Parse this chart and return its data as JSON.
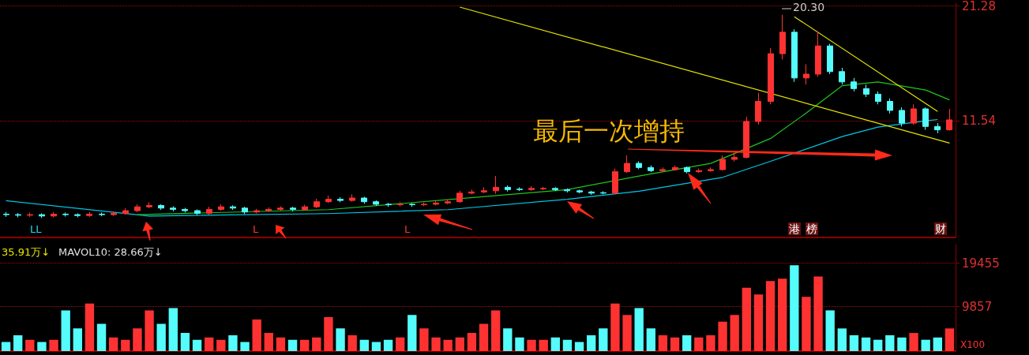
{
  "chart_data": [
    {
      "type": "candlestick",
      "categories": [
        null,
        null,
        null,
        null,
        null,
        null,
        null,
        null,
        null,
        null,
        null,
        null,
        null,
        null,
        null,
        null,
        null,
        null,
        null,
        null,
        null,
        null,
        null,
        null,
        null,
        null,
        null,
        null,
        null,
        null,
        null,
        null,
        null,
        null,
        null,
        null,
        null,
        null,
        null,
        null,
        null,
        null,
        null,
        null,
        null,
        null,
        null,
        null,
        null,
        null,
        null,
        null,
        null,
        null,
        null,
        null,
        null,
        null,
        null,
        null,
        null,
        null,
        null,
        null,
        null,
        null,
        null,
        null,
        null,
        null,
        null,
        null,
        null,
        null,
        null,
        null,
        null,
        null,
        null,
        null
      ],
      "ohlc": [
        [
          7.02,
          7.1,
          6.92,
          7.0
        ],
        [
          7.0,
          7.06,
          6.9,
          6.98
        ],
        [
          6.98,
          7.08,
          6.92,
          7.0
        ],
        [
          7.0,
          7.05,
          6.88,
          6.95
        ],
        [
          6.95,
          7.1,
          6.9,
          7.02
        ],
        [
          7.02,
          7.08,
          6.93,
          7.0
        ],
        [
          7.0,
          7.05,
          6.9,
          6.97
        ],
        [
          6.97,
          7.1,
          6.92,
          7.02
        ],
        [
          7.02,
          7.08,
          6.94,
          7.0
        ],
        [
          7.0,
          7.12,
          6.95,
          7.05
        ],
        [
          7.05,
          7.25,
          7.0,
          7.15
        ],
        [
          7.15,
          7.4,
          7.1,
          7.3
        ],
        [
          7.3,
          7.48,
          7.25,
          7.35
        ],
        [
          7.35,
          7.4,
          7.18,
          7.25
        ],
        [
          7.25,
          7.32,
          7.12,
          7.2
        ],
        [
          7.2,
          7.26,
          7.08,
          7.15
        ],
        [
          7.15,
          7.2,
          6.98,
          7.05
        ],
        [
          7.05,
          7.3,
          7.0,
          7.2
        ],
        [
          7.2,
          7.4,
          7.15,
          7.3
        ],
        [
          7.3,
          7.36,
          7.18,
          7.25
        ],
        [
          7.25,
          7.3,
          7.02,
          7.1
        ],
        [
          7.1,
          7.22,
          7.05,
          7.15
        ],
        [
          7.15,
          7.28,
          7.1,
          7.2
        ],
        [
          7.2,
          7.32,
          7.15,
          7.25
        ],
        [
          7.25,
          7.3,
          7.12,
          7.2
        ],
        [
          7.2,
          7.38,
          7.15,
          7.3
        ],
        [
          7.3,
          7.62,
          7.25,
          7.5
        ],
        [
          7.5,
          7.75,
          7.45,
          7.6
        ],
        [
          7.6,
          7.68,
          7.48,
          7.55
        ],
        [
          7.55,
          7.8,
          7.5,
          7.65
        ],
        [
          7.65,
          7.7,
          7.42,
          7.5
        ],
        [
          7.5,
          7.55,
          7.34,
          7.4
        ],
        [
          7.4,
          7.45,
          7.3,
          7.38
        ],
        [
          7.38,
          7.48,
          7.32,
          7.4
        ],
        [
          7.4,
          7.45,
          7.3,
          7.38
        ],
        [
          7.38,
          7.47,
          7.33,
          7.4
        ],
        [
          7.4,
          7.52,
          7.36,
          7.45
        ],
        [
          7.45,
          7.58,
          7.4,
          7.5
        ],
        [
          7.5,
          7.95,
          7.46,
          7.85
        ],
        [
          7.85,
          8.0,
          7.8,
          7.9
        ],
        [
          7.9,
          8.1,
          7.85,
          7.95
        ],
        [
          7.95,
          8.6,
          7.82,
          8.1
        ],
        [
          8.1,
          8.18,
          7.92,
          8.0
        ],
        [
          8.02,
          8.1,
          7.94,
          8.0
        ],
        [
          8.0,
          8.15,
          7.95,
          8.05
        ],
        [
          8.03,
          8.12,
          7.98,
          8.05
        ],
        [
          8.05,
          8.1,
          7.94,
          8.0
        ],
        [
          8.0,
          8.05,
          7.88,
          7.95
        ],
        [
          7.95,
          8.0,
          7.84,
          7.9
        ],
        [
          7.9,
          7.95,
          7.78,
          7.85
        ],
        [
          7.87,
          7.93,
          7.8,
          7.85
        ],
        [
          7.85,
          8.95,
          7.82,
          8.8
        ],
        [
          8.8,
          9.6,
          8.75,
          9.2
        ],
        [
          9.2,
          9.3,
          8.92,
          9.0
        ],
        [
          9.0,
          9.1,
          8.78,
          8.85
        ],
        [
          8.85,
          9.0,
          8.8,
          8.9
        ],
        [
          8.9,
          9.1,
          8.85,
          9.0
        ],
        [
          9.0,
          9.05,
          8.72,
          8.8
        ],
        [
          8.8,
          8.95,
          8.75,
          8.85
        ],
        [
          8.85,
          9.0,
          8.8,
          8.9
        ],
        [
          8.9,
          9.6,
          8.85,
          9.4
        ],
        [
          9.4,
          9.7,
          9.3,
          9.5
        ],
        [
          9.5,
          11.8,
          9.45,
          11.5
        ],
        [
          11.5,
          13.4,
          11.3,
          12.8
        ],
        [
          12.8,
          17.0,
          12.6,
          16.5
        ],
        [
          16.5,
          20.3,
          16.0,
          18.5
        ],
        [
          18.5,
          18.8,
          14.2,
          14.5
        ],
        [
          14.5,
          15.6,
          14.0,
          14.8
        ],
        [
          14.8,
          18.6,
          14.6,
          17.2
        ],
        [
          17.2,
          17.4,
          14.8,
          15.0
        ],
        [
          15.0,
          15.3,
          14.0,
          14.2
        ],
        [
          14.2,
          14.5,
          13.5,
          13.7
        ],
        [
          13.7,
          14.0,
          13.1,
          13.3
        ],
        [
          13.3,
          13.5,
          12.6,
          12.8
        ],
        [
          12.8,
          13.0,
          12.0,
          12.2
        ],
        [
          12.2,
          12.4,
          11.2,
          11.4
        ],
        [
          11.4,
          12.6,
          11.3,
          12.3
        ],
        [
          12.3,
          12.4,
          11.0,
          11.2
        ],
        [
          11.2,
          11.4,
          10.8,
          11.0
        ],
        [
          11.0,
          12.3,
          10.95,
          11.6
        ]
      ],
      "series": [
        {
          "type": "line",
          "color": "#00c8e6",
          "values": [
            7.54,
            null,
            null,
            null,
            null,
            null,
            null,
            null,
            null,
            null,
            null,
            null,
            6.95,
            null,
            null,
            null,
            null,
            null,
            null,
            null,
            null,
            null,
            null,
            null,
            null,
            null,
            null,
            7.04,
            null,
            null,
            null,
            null,
            null,
            null,
            null,
            null,
            null,
            7.19,
            null,
            null,
            null,
            null,
            null,
            null,
            null,
            null,
            null,
            7.6,
            null,
            null,
            null,
            null,
            null,
            7.93,
            null,
            null,
            null,
            null,
            null,
            null,
            8.54,
            null,
            null,
            null,
            9.3,
            null,
            null,
            null,
            null,
            null,
            10.61,
            null,
            null,
            11.16,
            null,
            null,
            null,
            11.54,
            11.62,
            null
          ]
        },
        {
          "type": "line",
          "color": "#1fc51f",
          "values": [
            null,
            null,
            null,
            null,
            null,
            null,
            null,
            null,
            null,
            null,
            null,
            7.0,
            null,
            null,
            null,
            null,
            null,
            null,
            null,
            null,
            null,
            null,
            null,
            null,
            null,
            null,
            null,
            7.19,
            null,
            null,
            null,
            null,
            null,
            null,
            null,
            null,
            null,
            null,
            null,
            null,
            null,
            null,
            null,
            null,
            null,
            null,
            null,
            8.0,
            null,
            null,
            null,
            null,
            null,
            8.6,
            null,
            null,
            null,
            null,
            null,
            9.2,
            null,
            null,
            null,
            null,
            10.5,
            null,
            null,
            12.03,
            null,
            null,
            13.91,
            null,
            null,
            14.2,
            null,
            null,
            null,
            13.6,
            null,
            12.9
          ]
        },
        {
          "type": "line",
          "color": "#e6e600",
          "values": [
            null,
            null,
            null,
            null,
            null,
            null,
            null,
            null,
            null,
            null,
            null,
            null,
            null,
            null,
            null,
            null,
            null,
            null,
            null,
            null,
            null,
            null,
            null,
            null,
            null,
            null,
            null,
            null,
            null,
            null,
            null,
            null,
            null,
            null,
            null,
            null,
            null,
            null,
            21.15,
            null,
            null,
            null,
            null,
            null,
            null,
            null,
            null,
            null,
            null,
            null,
            null,
            null,
            null,
            null,
            null,
            null,
            null,
            null,
            null,
            null,
            null,
            null,
            null,
            null,
            null,
            null,
            null,
            null,
            null,
            null,
            null,
            null,
            null,
            null,
            null,
            null,
            null,
            null,
            null,
            10.25
          ]
        },
        {
          "type": "line",
          "color": "#e6e600",
          "values": [
            null,
            null,
            null,
            null,
            null,
            null,
            null,
            null,
            null,
            null,
            null,
            null,
            null,
            null,
            null,
            null,
            null,
            null,
            null,
            null,
            null,
            null,
            null,
            null,
            null,
            null,
            null,
            null,
            null,
            null,
            null,
            null,
            null,
            null,
            null,
            null,
            null,
            null,
            null,
            null,
            null,
            null,
            null,
            null,
            null,
            null,
            null,
            null,
            null,
            null,
            null,
            null,
            null,
            null,
            null,
            null,
            null,
            null,
            null,
            null,
            null,
            null,
            null,
            null,
            null,
            null,
            20.1,
            null,
            null,
            null,
            null,
            null,
            null,
            null,
            null,
            null,
            null,
            null,
            12.13,
            null
          ]
        }
      ],
      "ylim": [
        6.2,
        21.6
      ],
      "yticks": [
        11.54,
        21.28
      ],
      "log": true,
      "grid": "y",
      "tick_labels": "y",
      "annotations": [
        "20.30",
        "最后一次增持",
        "LL",
        "L",
        "L",
        "港",
        "榜",
        "财"
      ]
    },
    {
      "type": "bar",
      "categories": [
        null,
        null,
        null,
        null,
        null,
        null,
        null,
        null,
        null,
        null,
        null,
        null,
        null,
        null,
        null,
        null,
        null,
        null,
        null,
        null,
        null,
        null,
        null,
        null,
        null,
        null,
        null,
        null,
        null,
        null,
        null,
        null,
        null,
        null,
        null,
        null,
        null,
        null,
        null,
        null,
        null,
        null,
        null,
        null,
        null,
        null,
        null,
        null,
        null,
        null,
        null,
        null,
        null,
        null,
        null,
        null,
        null,
        null,
        null,
        null,
        null,
        null,
        null,
        null,
        null,
        null,
        null,
        null,
        null,
        null,
        null,
        null,
        null,
        null,
        null,
        null,
        null,
        null,
        null,
        null
      ],
      "values": [
        2000,
        3500,
        2500,
        2000,
        2500,
        9000,
        5000,
        10500,
        6000,
        3000,
        2500,
        5000,
        9000,
        6000,
        9500,
        4000,
        2500,
        3000,
        2500,
        3500,
        2000,
        7000,
        4000,
        3000,
        2500,
        2500,
        3000,
        7500,
        5000,
        3500,
        2500,
        2000,
        2500,
        3000,
        8000,
        5000,
        3000,
        2500,
        3000,
        4000,
        6000,
        9000,
        5000,
        3000,
        2500,
        2500,
        3000,
        2500,
        2000,
        3500,
        5000,
        10500,
        8000,
        9500,
        5000,
        3500,
        3000,
        3500,
        3000,
        3500,
        6500,
        8000,
        14000,
        12500,
        15500,
        16000,
        19000,
        12000,
        16500,
        9000,
        5000,
        3500,
        3000,
        2500,
        3500,
        3000,
        4000,
        2500,
        3000,
        5000
      ],
      "colors": [
        "#54fcfc",
        "#54fcfc",
        "#ff3232",
        "#54fcfc",
        "#ff3232",
        "#54fcfc",
        "#54fcfc",
        "#ff3232",
        "#54fcfc",
        "#ff3232",
        "#ff3232",
        "#ff3232",
        "#ff3232",
        "#54fcfc",
        "#54fcfc",
        "#54fcfc",
        "#54fcfc",
        "#ff3232",
        "#ff3232",
        "#54fcfc",
        "#54fcfc",
        "#ff3232",
        "#ff3232",
        "#ff3232",
        "#54fcfc",
        "#ff3232",
        "#ff3232",
        "#ff3232",
        "#54fcfc",
        "#ff3232",
        "#54fcfc",
        "#54fcfc",
        "#54fcfc",
        "#ff3232",
        "#54fcfc",
        "#ff3232",
        "#ff3232",
        "#ff3232",
        "#ff3232",
        "#ff3232",
        "#ff3232",
        "#ff3232",
        "#54fcfc",
        "#54fcfc",
        "#ff3232",
        "#ff3232",
        "#54fcfc",
        "#54fcfc",
        "#54fcfc",
        "#54fcfc",
        "#54fcfc",
        "#ff3232",
        "#ff3232",
        "#54fcfc",
        "#54fcfc",
        "#ff3232",
        "#ff3232",
        "#54fcfc",
        "#ff3232",
        "#ff3232",
        "#ff3232",
        "#ff3232",
        "#ff3232",
        "#ff3232",
        "#ff3232",
        "#ff3232",
        "#54fcfc",
        "#ff3232",
        "#ff3232",
        "#54fcfc",
        "#54fcfc",
        "#54fcfc",
        "#54fcfc",
        "#54fcfc",
        "#54fcfc",
        "#54fcfc",
        "#ff3232",
        "#54fcfc",
        "#54fcfc",
        "#ff3232"
      ],
      "ylim": [
        0,
        23560
      ],
      "yticks": [
        9857,
        19455
      ],
      "grid": "y",
      "tick_labels": "y",
      "annotations": [
        "35.91万↓",
        "MAVOL10: 28.66万↓",
        "X100"
      ]
    }
  ]
}
